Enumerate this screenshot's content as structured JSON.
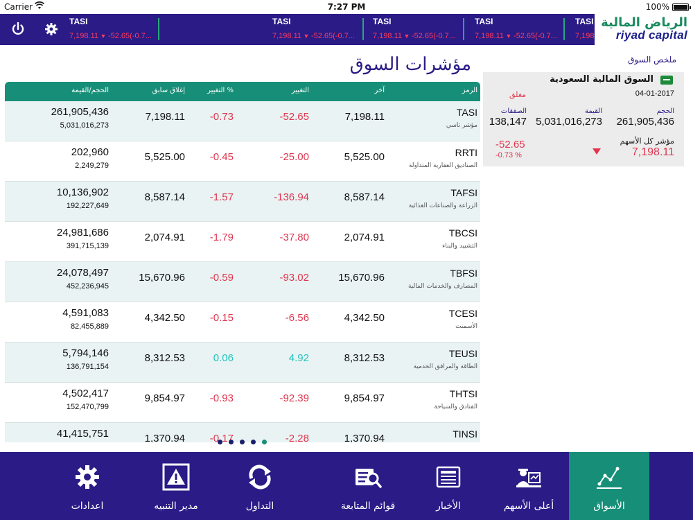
{
  "status_bar": {
    "carrier": "Carrier",
    "time": "7:27 PM",
    "battery": "100%"
  },
  "ticker": [
    {
      "name": "TASI",
      "value": "7,198.11",
      "change": "-52.65(-0.7..."
    },
    {
      "name": "TASI",
      "value": "7,198.11",
      "change": "-52.65(-0.7..."
    },
    {
      "name": "TASI",
      "value": "7,198.11",
      "change": "-52.65(-0.7..."
    },
    {
      "name": "TASI",
      "value": "7,198.11",
      "change": "-52.65(-0.7..."
    },
    {
      "name": "TASI",
      "value": "7,198.11",
      "change": "-52.65(-0.7..."
    }
  ],
  "logo": {
    "arabic": "الرياض المالية",
    "english": "riyad capital"
  },
  "page_title": "مؤشرات السوق",
  "table": {
    "headers": {
      "symbol": "الرمز",
      "last": "آخر",
      "change": "التغيير",
      "change_pct": "التغيير %",
      "prev_close": "إغلاق سابق",
      "volume_value": "الحجم/القيمة"
    },
    "rows": [
      {
        "symbol": "TASI",
        "name": "مؤشر تاسي",
        "last": "7,198.11",
        "change": "-52.65",
        "pct": "-0.73",
        "prev": "7,198.11",
        "volume": "261,905,436",
        "value": "5,031,016,273",
        "dir": "neg"
      },
      {
        "symbol": "RRTI",
        "name": "الصناديق العقارية المتداولة",
        "last": "5,525.00",
        "change": "-25.00",
        "pct": "-0.45",
        "prev": "5,525.00",
        "volume": "202,960",
        "value": "2,249,279",
        "dir": "neg"
      },
      {
        "symbol": "TAFSI",
        "name": "الزراعة والصناعات الغذائية",
        "last": "8,587.14",
        "change": "-136.94",
        "pct": "-1.57",
        "prev": "8,587.14",
        "volume": "10,136,902",
        "value": "192,227,649",
        "dir": "neg"
      },
      {
        "symbol": "TBCSI",
        "name": "التشييد والبناء",
        "last": "2,074.91",
        "change": "-37.80",
        "pct": "-1.79",
        "prev": "2,074.91",
        "volume": "24,981,686",
        "value": "391,715,139",
        "dir": "neg"
      },
      {
        "symbol": "TBFSI",
        "name": "المصارف والخدمات المالية",
        "last": "15,670.96",
        "change": "-93.02",
        "pct": "-0.59",
        "prev": "15,670.96",
        "volume": "24,078,497",
        "value": "452,236,945",
        "dir": "neg"
      },
      {
        "symbol": "TCESI",
        "name": "الأسمنت",
        "last": "4,342.50",
        "change": "-6.56",
        "pct": "-0.15",
        "prev": "4,342.50",
        "volume": "4,591,083",
        "value": "82,455,889",
        "dir": "neg"
      },
      {
        "symbol": "TEUSI",
        "name": "الطاقة والمرافق الخدمية",
        "last": "8,312.53",
        "change": "4.92",
        "pct": "0.06",
        "prev": "8,312.53",
        "volume": "5,794,146",
        "value": "136,791,154",
        "dir": "pos"
      },
      {
        "symbol": "THTSI",
        "name": "الفنادق والسياحة",
        "last": "9,854.97",
        "change": "-92.39",
        "pct": "-0.93",
        "prev": "9,854.97",
        "volume": "4,502,417",
        "value": "152,470,799",
        "dir": "neg"
      },
      {
        "symbol": "TINSI",
        "name": "",
        "last": "1,370.94",
        "change": "-2.28",
        "pct": "-0.17",
        "prev": "1,370.94",
        "volume": "41,415,751",
        "value": "",
        "dir": "neg"
      }
    ]
  },
  "pager": {
    "count": 5,
    "active": 4
  },
  "summary": {
    "title": "ملخص السوق",
    "market_name": "السوق المالية السعودية",
    "date": "04-01-2017",
    "status": "مغلق",
    "volume_label": "الحجم",
    "volume": "261,905,436",
    "value_label": "القيمة",
    "value": "5,031,016,273",
    "trades_label": "الصفقات",
    "trades": "138,147",
    "index_label": "مؤشر كل الأسهم",
    "index_value": "7,198.11",
    "index_change": "-52.65",
    "index_pct": "-0.73 %"
  },
  "tabs": [
    {
      "label": "الأسواق",
      "icon": "markets-chart-icon",
      "active": true
    },
    {
      "label": "أعلى الأسهم",
      "icon": "top-stocks-icon",
      "active": false
    },
    {
      "label": "الأخبار",
      "icon": "news-icon",
      "active": false
    },
    {
      "label": "قوائم المتابعة",
      "icon": "watchlist-icon",
      "active": false
    },
    {
      "label": "التداول",
      "icon": "trading-icon",
      "active": false
    },
    {
      "label": "مدير التنبيه",
      "icon": "alert-icon",
      "active": false
    },
    {
      "label": "اعدادات",
      "icon": "settings-gear-icon",
      "active": false
    }
  ]
}
